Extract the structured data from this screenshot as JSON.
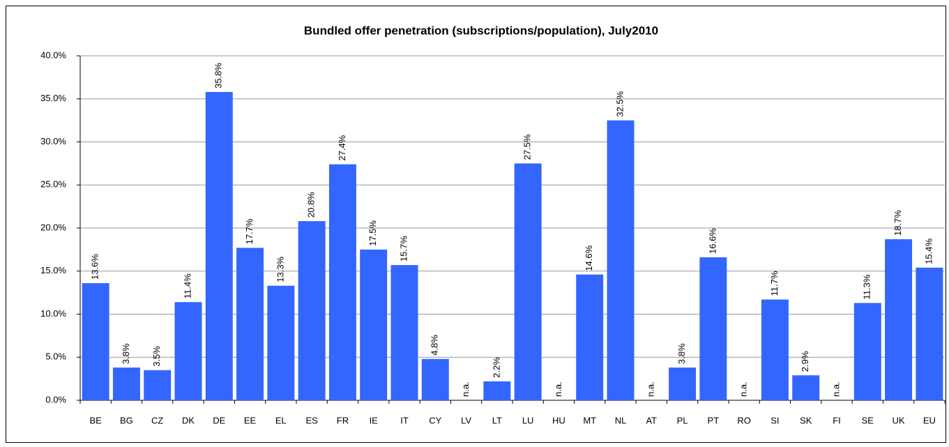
{
  "chart_data": {
    "type": "bar",
    "title": "Bundled offer penetration (subscriptions/population), July2010",
    "categories": [
      "BE",
      "BG",
      "CZ",
      "DK",
      "DE",
      "EE",
      "EL",
      "ES",
      "FR",
      "IE",
      "IT",
      "CY",
      "LV",
      "LT",
      "LU",
      "HU",
      "MT",
      "NL",
      "AT",
      "PL",
      "PT",
      "RO",
      "SI",
      "SK",
      "FI",
      "SE",
      "UK",
      "EU"
    ],
    "values": [
      13.6,
      3.8,
      3.5,
      11.4,
      35.8,
      17.7,
      13.3,
      20.8,
      27.4,
      17.5,
      15.7,
      4.8,
      null,
      2.2,
      27.5,
      null,
      14.6,
      32.5,
      null,
      3.8,
      16.6,
      null,
      11.7,
      2.9,
      null,
      11.3,
      18.7,
      15.4
    ],
    "value_labels": [
      "13.6%",
      "3.8%",
      "3.5%",
      "11.4%",
      "35.8%",
      "17.7%",
      "13.3%",
      "20.8%",
      "27.4%",
      "17.5%",
      "15.7%",
      "4.8%",
      "n.a.",
      "2.2%",
      "27.5%",
      "n.a.",
      "14.6%",
      "32.5%",
      "n.a.",
      "3.8%",
      "16.6%",
      "n.a.",
      "11.7%",
      "2.9%",
      "n.a.",
      "11.3%",
      "18.7%",
      "15.4%"
    ],
    "color": "#3366ff",
    "ylim": [
      0,
      40
    ],
    "yticks": [
      {
        "value": 0,
        "label": "0.0%"
      },
      {
        "value": 5,
        "label": "5.0%"
      },
      {
        "value": 10,
        "label": "10.0%"
      },
      {
        "value": 15,
        "label": "15.0%"
      },
      {
        "value": 20,
        "label": "20.0%"
      },
      {
        "value": 25,
        "label": "25.0%"
      },
      {
        "value": 30,
        "label": "30.0%"
      },
      {
        "value": 35,
        "label": "35.0%"
      },
      {
        "value": 40,
        "label": "40.0%"
      }
    ],
    "grid": true
  }
}
